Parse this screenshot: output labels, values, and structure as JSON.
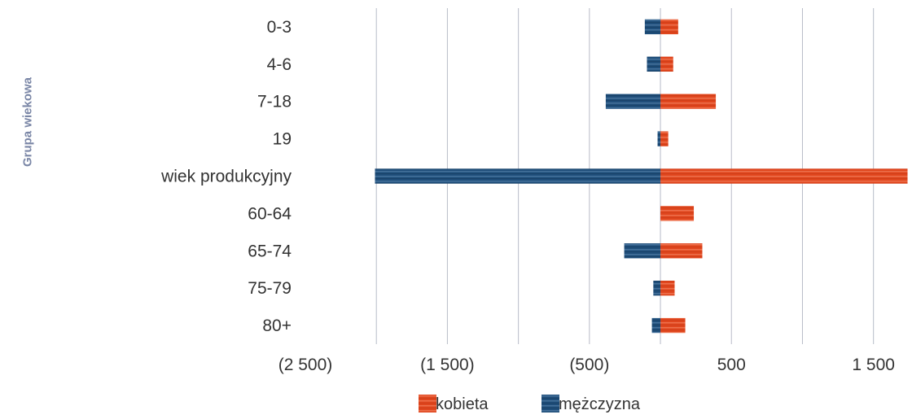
{
  "chart_data": {
    "type": "bar",
    "orientation": "horizontal",
    "stacked": true,
    "ylabel": "Grupa wiekowa",
    "xlabel": "",
    "title": "",
    "categories": [
      "0-3",
      "4-6",
      "7-18",
      "19",
      "wiek produkcyjny",
      "60-64",
      "65-74",
      "75-79",
      "80+"
    ],
    "series": [
      {
        "name": "kobieta",
        "color": "#e0461e",
        "values": [
          125,
          90,
          390,
          55,
          1740,
          235,
          295,
          100,
          175
        ]
      },
      {
        "name": "mężczyzna",
        "color": "#1f4e7a",
        "values": [
          -110,
          -95,
          -385,
          -20,
          -2010,
          0,
          -255,
          -50,
          -60
        ]
      }
    ],
    "xlim": [
      -2500,
      1800
    ],
    "xticks": [
      -2000,
      -1500,
      -1000,
      -500,
      0,
      500,
      1000,
      1500
    ],
    "xtick_labels": [
      "(2 500)",
      "(1 500)",
      "(500)",
      "500",
      "1 500"
    ],
    "xtick_label_values": [
      -2500,
      -1500,
      -500,
      500,
      1500
    ],
    "grid": true,
    "legend_position": "bottom"
  }
}
